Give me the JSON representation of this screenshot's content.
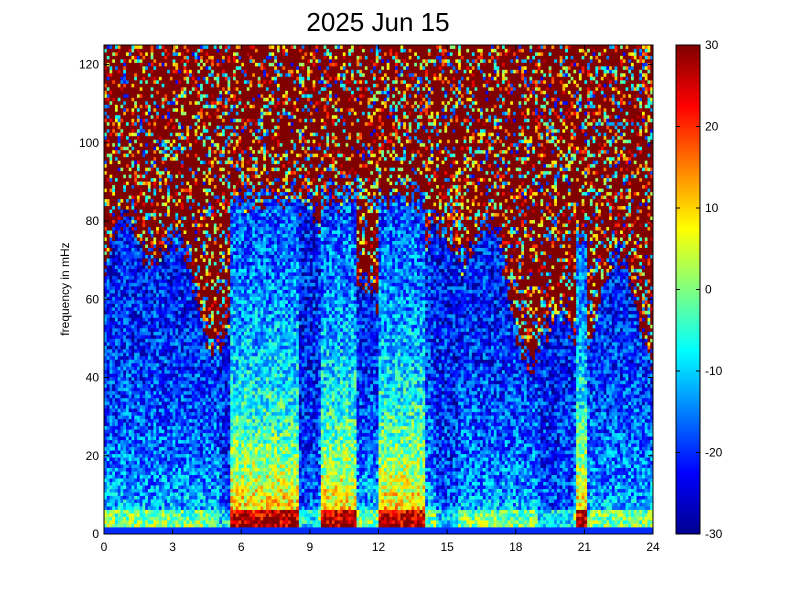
{
  "chart_data": {
    "type": "heatmap",
    "title": "2025 Jun 15",
    "xlabel": "",
    "ylabel": "frequency in mHz",
    "x_range": [
      0,
      24
    ],
    "y_range": [
      0,
      125
    ],
    "x_ticks": [
      0,
      3,
      6,
      9,
      12,
      15,
      18,
      21,
      24
    ],
    "y_ticks": [
      0,
      20,
      40,
      60,
      80,
      100,
      120
    ],
    "colorbar": {
      "colormap": "jet",
      "range": [
        -30,
        30
      ],
      "ticks": [
        -30,
        -20,
        -10,
        0,
        10,
        20,
        30
      ]
    },
    "grid": false,
    "description_levels": {
      "high_freq_background": 30,
      "low_freq_peak": 22,
      "mid_freq_level": -8
    },
    "bright_episodes_hours": [
      {
        "start": 5.5,
        "end": 8.5,
        "peak_freq_mHz": 40
      },
      {
        "start": 9.5,
        "end": 11.0,
        "peak_freq_mHz": 35
      },
      {
        "start": 12.0,
        "end": 14.0,
        "peak_freq_mHz": 30
      },
      {
        "start": 20.6,
        "end": 21.1,
        "peak_freq_mHz": 15
      }
    ],
    "quiet_gaps_hours": [
      {
        "start": 5.0,
        "end": 5.5
      },
      {
        "start": 8.5,
        "end": 9.3
      },
      {
        "start": 14.5,
        "end": 15.5
      },
      {
        "start": 19.0,
        "end": 20.5
      }
    ]
  }
}
